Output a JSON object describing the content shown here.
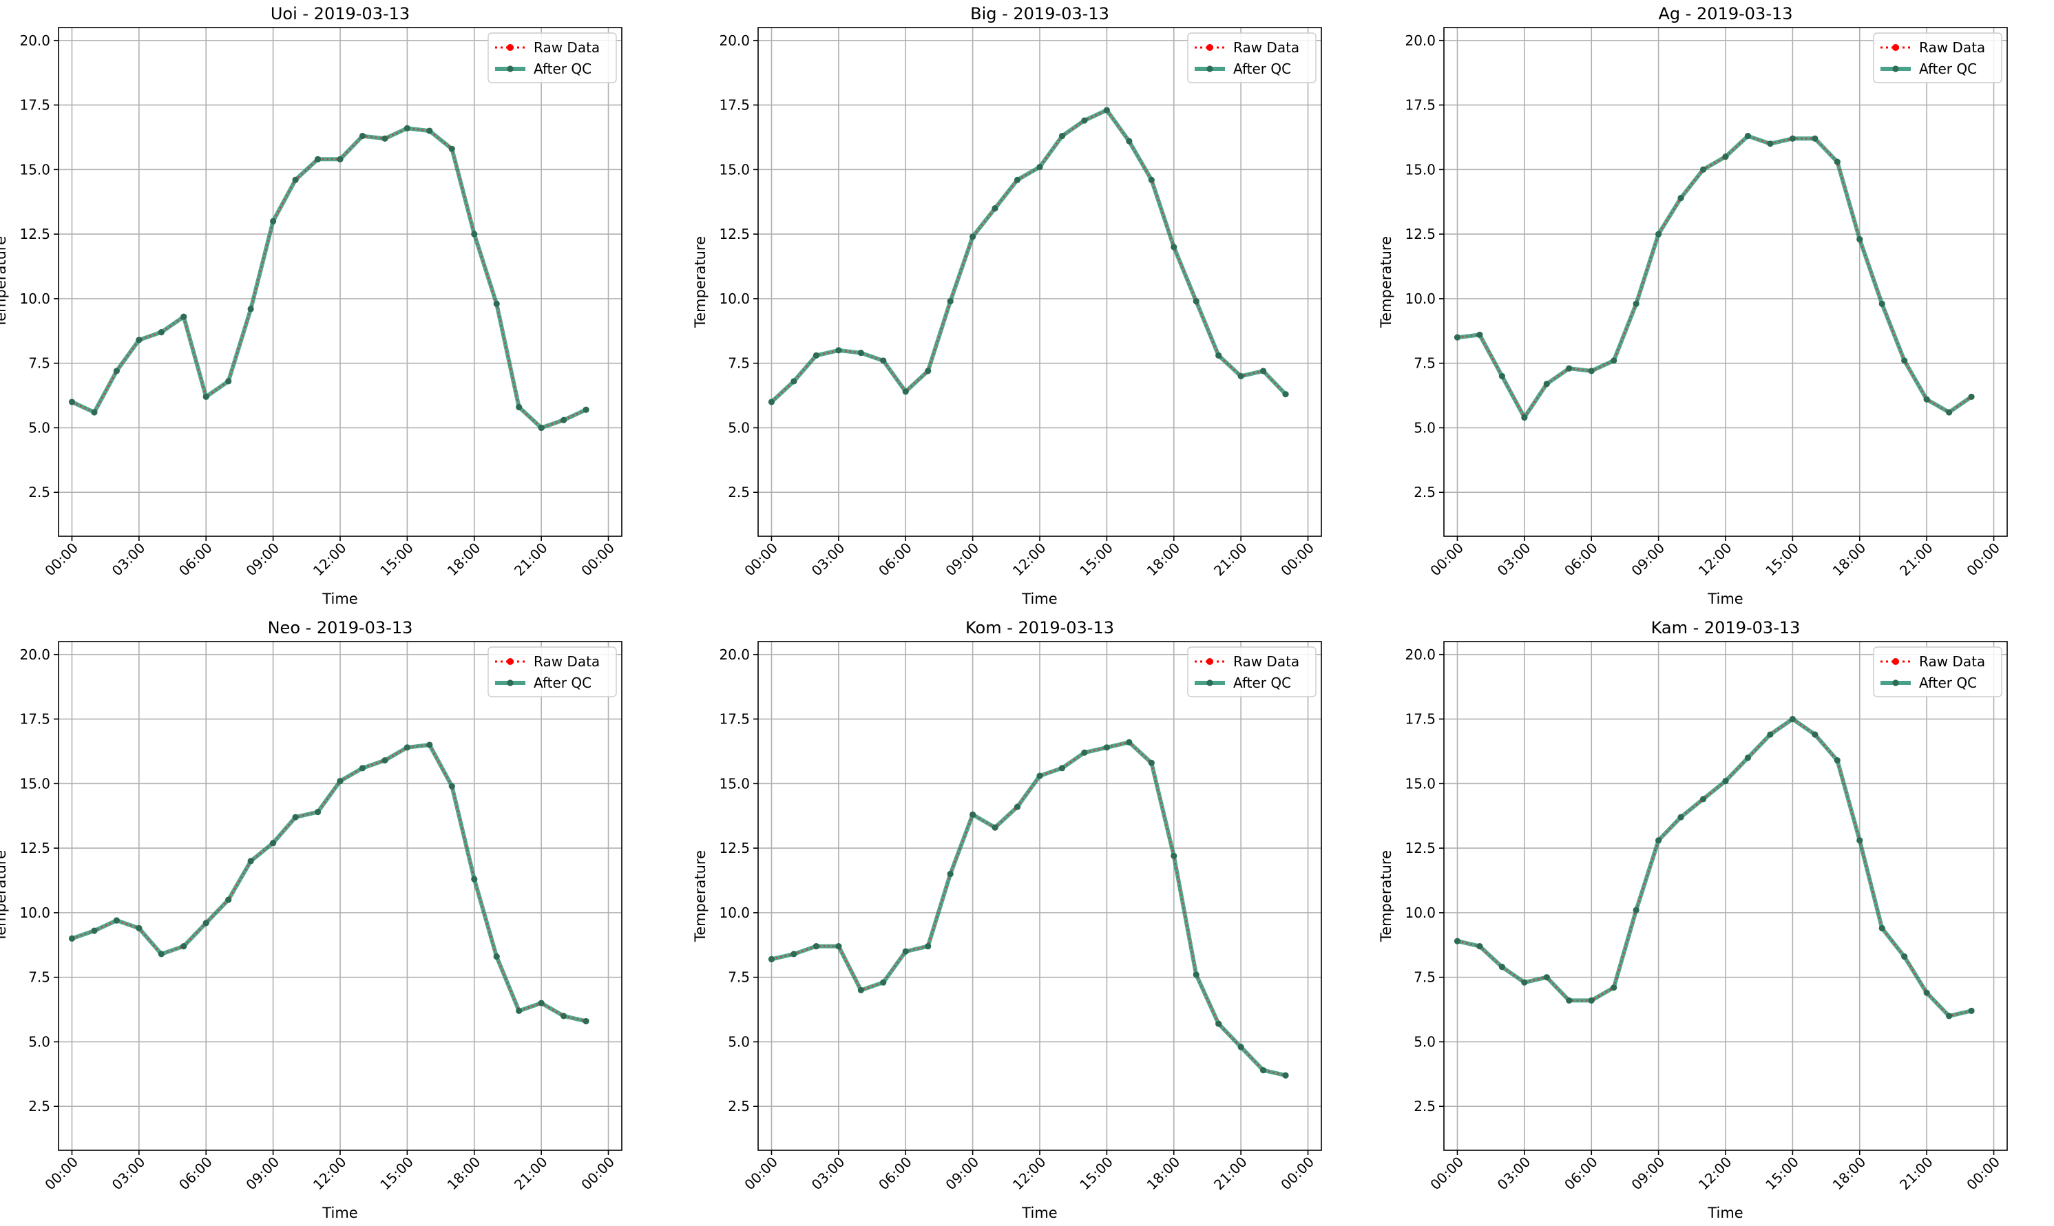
{
  "chart_data": [
    {
      "type": "line",
      "title": "Uoi - 2019-03-13",
      "xlabel": "Time",
      "ylabel": "Temperature",
      "xlim_hours": [
        -0.6,
        24.6
      ],
      "ylim": [
        0.8,
        20.5
      ],
      "xtick_labels": [
        "00:00",
        "03:00",
        "06:00",
        "09:00",
        "12:00",
        "15:00",
        "18:00",
        "21:00",
        "00:00"
      ],
      "ytick_labels": [
        "2.5",
        "5.0",
        "7.5",
        "10.0",
        "12.5",
        "15.0",
        "17.5",
        "20.0"
      ],
      "grid": true,
      "legend_position": "top-right",
      "x": [
        "00:00",
        "01:00",
        "02:00",
        "03:00",
        "04:00",
        "05:00",
        "06:00",
        "07:00",
        "08:00",
        "09:00",
        "10:00",
        "11:00",
        "12:00",
        "13:00",
        "14:00",
        "15:00",
        "16:00",
        "17:00",
        "18:00",
        "19:00",
        "20:00",
        "21:00",
        "22:00",
        "23:00"
      ],
      "series": [
        {
          "name": "Raw Data",
          "color": "#ff0000",
          "style": "dotted",
          "values": [
            6.0,
            5.6,
            7.2,
            8.4,
            8.7,
            9.3,
            6.2,
            6.8,
            9.6,
            13.0,
            14.6,
            15.4,
            15.4,
            16.3,
            16.2,
            16.6,
            16.5,
            15.8,
            12.5,
            9.8,
            5.8,
            5.0,
            5.3,
            5.7
          ]
        },
        {
          "name": "After QC",
          "color": "#1a8a6a",
          "style": "solid",
          "values": [
            6.0,
            5.6,
            7.2,
            8.4,
            8.7,
            9.3,
            6.2,
            6.8,
            9.6,
            13.0,
            14.6,
            15.4,
            15.4,
            16.3,
            16.2,
            16.6,
            16.5,
            15.8,
            12.5,
            9.8,
            5.8,
            5.0,
            5.3,
            5.7
          ]
        }
      ]
    },
    {
      "type": "line",
      "title": "Big - 2019-03-13",
      "xlabel": "Time",
      "ylabel": "Temperature",
      "xlim_hours": [
        -0.6,
        24.6
      ],
      "ylim": [
        0.8,
        20.5
      ],
      "xtick_labels": [
        "00:00",
        "03:00",
        "06:00",
        "09:00",
        "12:00",
        "15:00",
        "18:00",
        "21:00",
        "00:00"
      ],
      "ytick_labels": [
        "2.5",
        "5.0",
        "7.5",
        "10.0",
        "12.5",
        "15.0",
        "17.5",
        "20.0"
      ],
      "grid": true,
      "legend_position": "top-right",
      "x": [
        "00:00",
        "01:00",
        "02:00",
        "03:00",
        "04:00",
        "05:00",
        "06:00",
        "07:00",
        "08:00",
        "09:00",
        "10:00",
        "11:00",
        "12:00",
        "13:00",
        "14:00",
        "15:00",
        "16:00",
        "17:00",
        "18:00",
        "19:00",
        "20:00",
        "21:00",
        "22:00",
        "23:00"
      ],
      "series": [
        {
          "name": "Raw Data",
          "color": "#ff0000",
          "style": "dotted",
          "values": [
            6.0,
            6.8,
            7.8,
            8.0,
            7.9,
            7.6,
            6.4,
            7.2,
            9.9,
            12.4,
            13.5,
            14.6,
            15.1,
            16.3,
            16.9,
            17.3,
            16.1,
            14.6,
            12.0,
            9.9,
            7.8,
            7.0,
            7.2,
            6.3
          ]
        },
        {
          "name": "After QC",
          "color": "#1a8a6a",
          "style": "solid",
          "values": [
            6.0,
            6.8,
            7.8,
            8.0,
            7.9,
            7.6,
            6.4,
            7.2,
            9.9,
            12.4,
            13.5,
            14.6,
            15.1,
            16.3,
            16.9,
            17.3,
            16.1,
            14.6,
            12.0,
            9.9,
            7.8,
            7.0,
            7.2,
            6.3
          ]
        }
      ]
    },
    {
      "type": "line",
      "title": "Ag - 2019-03-13",
      "xlabel": "Time",
      "ylabel": "Temperature",
      "xlim_hours": [
        -0.6,
        24.6
      ],
      "ylim": [
        0.8,
        20.5
      ],
      "xtick_labels": [
        "00:00",
        "03:00",
        "06:00",
        "09:00",
        "12:00",
        "15:00",
        "18:00",
        "21:00",
        "00:00"
      ],
      "ytick_labels": [
        "2.5",
        "5.0",
        "7.5",
        "10.0",
        "12.5",
        "15.0",
        "17.5",
        "20.0"
      ],
      "grid": true,
      "legend_position": "top-right",
      "x": [
        "00:00",
        "01:00",
        "02:00",
        "03:00",
        "04:00",
        "05:00",
        "06:00",
        "07:00",
        "08:00",
        "09:00",
        "10:00",
        "11:00",
        "12:00",
        "13:00",
        "14:00",
        "15:00",
        "16:00",
        "17:00",
        "18:00",
        "19:00",
        "20:00",
        "21:00",
        "22:00",
        "23:00"
      ],
      "series": [
        {
          "name": "Raw Data",
          "color": "#ff0000",
          "style": "dotted",
          "values": [
            8.5,
            8.6,
            7.0,
            5.4,
            6.7,
            7.3,
            7.2,
            7.6,
            9.8,
            12.5,
            13.9,
            15.0,
            15.5,
            16.3,
            16.0,
            16.2,
            16.2,
            15.3,
            12.3,
            9.8,
            7.6,
            6.1,
            5.6,
            6.2
          ]
        },
        {
          "name": "After QC",
          "color": "#1a8a6a",
          "style": "solid",
          "values": [
            8.5,
            8.6,
            7.0,
            5.4,
            6.7,
            7.3,
            7.2,
            7.6,
            9.8,
            12.5,
            13.9,
            15.0,
            15.5,
            16.3,
            16.0,
            16.2,
            16.2,
            15.3,
            12.3,
            9.8,
            7.6,
            6.1,
            5.6,
            6.2
          ]
        }
      ]
    },
    {
      "type": "line",
      "title": "Neo - 2019-03-13",
      "xlabel": "Time",
      "ylabel": "Temperature",
      "xlim_hours": [
        -0.6,
        24.6
      ],
      "ylim": [
        0.8,
        20.5
      ],
      "xtick_labels": [
        "00:00",
        "03:00",
        "06:00",
        "09:00",
        "12:00",
        "15:00",
        "18:00",
        "21:00",
        "00:00"
      ],
      "ytick_labels": [
        "2.5",
        "5.0",
        "7.5",
        "10.0",
        "12.5",
        "15.0",
        "17.5",
        "20.0"
      ],
      "grid": true,
      "legend_position": "top-right",
      "x": [
        "00:00",
        "01:00",
        "02:00",
        "03:00",
        "04:00",
        "05:00",
        "06:00",
        "07:00",
        "08:00",
        "09:00",
        "10:00",
        "11:00",
        "12:00",
        "13:00",
        "14:00",
        "15:00",
        "16:00",
        "17:00",
        "18:00",
        "19:00",
        "20:00",
        "21:00",
        "22:00",
        "23:00"
      ],
      "series": [
        {
          "name": "Raw Data",
          "color": "#ff0000",
          "style": "dotted",
          "values": [
            9.0,
            9.3,
            9.7,
            9.4,
            8.4,
            8.7,
            9.6,
            10.5,
            12.0,
            12.7,
            13.7,
            13.9,
            15.1,
            15.6,
            15.9,
            16.4,
            16.5,
            14.9,
            11.3,
            8.3,
            6.2,
            6.5,
            6.0,
            5.8
          ]
        },
        {
          "name": "After QC",
          "color": "#1a8a6a",
          "style": "solid",
          "values": [
            9.0,
            9.3,
            9.7,
            9.4,
            8.4,
            8.7,
            9.6,
            10.5,
            12.0,
            12.7,
            13.7,
            13.9,
            15.1,
            15.6,
            15.9,
            16.4,
            16.5,
            14.9,
            11.3,
            8.3,
            6.2,
            6.5,
            6.0,
            5.8
          ]
        }
      ]
    },
    {
      "type": "line",
      "title": "Kom - 2019-03-13",
      "xlabel": "Time",
      "ylabel": "Temperature",
      "xlim_hours": [
        -0.6,
        24.6
      ],
      "ylim": [
        0.8,
        20.5
      ],
      "xtick_labels": [
        "00:00",
        "03:00",
        "06:00",
        "09:00",
        "12:00",
        "15:00",
        "18:00",
        "21:00",
        "00:00"
      ],
      "ytick_labels": [
        "2.5",
        "5.0",
        "7.5",
        "10.0",
        "12.5",
        "15.0",
        "17.5",
        "20.0"
      ],
      "grid": true,
      "legend_position": "top-right",
      "x": [
        "00:00",
        "01:00",
        "02:00",
        "03:00",
        "04:00",
        "05:00",
        "06:00",
        "07:00",
        "08:00",
        "09:00",
        "10:00",
        "11:00",
        "12:00",
        "13:00",
        "14:00",
        "15:00",
        "16:00",
        "17:00",
        "18:00",
        "19:00",
        "20:00",
        "21:00",
        "22:00",
        "23:00"
      ],
      "series": [
        {
          "name": "Raw Data",
          "color": "#ff0000",
          "style": "dotted",
          "values": [
            8.2,
            8.4,
            8.7,
            8.7,
            7.0,
            7.3,
            8.5,
            8.7,
            11.5,
            13.8,
            13.3,
            14.1,
            15.3,
            15.6,
            16.2,
            16.4,
            16.6,
            15.8,
            12.2,
            7.6,
            5.7,
            4.8,
            3.9,
            3.7
          ]
        },
        {
          "name": "After QC",
          "color": "#1a8a6a",
          "style": "solid",
          "values": [
            8.2,
            8.4,
            8.7,
            8.7,
            7.0,
            7.3,
            8.5,
            8.7,
            11.5,
            13.8,
            13.3,
            14.1,
            15.3,
            15.6,
            16.2,
            16.4,
            16.6,
            15.8,
            12.2,
            7.6,
            5.7,
            4.8,
            3.9,
            3.7
          ]
        }
      ]
    },
    {
      "type": "line",
      "title": "Kam - 2019-03-13",
      "xlabel": "Time",
      "ylabel": "Temperature",
      "xlim_hours": [
        -0.6,
        24.6
      ],
      "ylim": [
        0.8,
        20.5
      ],
      "xtick_labels": [
        "00:00",
        "03:00",
        "06:00",
        "09:00",
        "12:00",
        "15:00",
        "18:00",
        "21:00",
        "00:00"
      ],
      "ytick_labels": [
        "2.5",
        "5.0",
        "7.5",
        "10.0",
        "12.5",
        "15.0",
        "17.5",
        "20.0"
      ],
      "grid": true,
      "legend_position": "top-right",
      "x": [
        "00:00",
        "01:00",
        "02:00",
        "03:00",
        "04:00",
        "05:00",
        "06:00",
        "07:00",
        "08:00",
        "09:00",
        "10:00",
        "11:00",
        "12:00",
        "13:00",
        "14:00",
        "15:00",
        "16:00",
        "17:00",
        "18:00",
        "19:00",
        "20:00",
        "21:00",
        "22:00",
        "23:00"
      ],
      "series": [
        {
          "name": "Raw Data",
          "color": "#ff0000",
          "style": "dotted",
          "values": [
            8.9,
            8.7,
            7.9,
            7.3,
            7.5,
            6.6,
            6.6,
            7.1,
            10.1,
            12.8,
            13.7,
            14.4,
            15.1,
            16.0,
            16.9,
            17.5,
            16.9,
            15.9,
            12.8,
            9.4,
            8.3,
            6.9,
            6.0,
            6.2
          ]
        },
        {
          "name": "After QC",
          "color": "#1a8a6a",
          "style": "solid",
          "values": [
            8.9,
            8.7,
            7.9,
            7.3,
            7.5,
            6.6,
            6.6,
            7.1,
            10.1,
            12.8,
            13.7,
            14.4,
            15.1,
            16.0,
            16.9,
            17.5,
            16.9,
            15.9,
            12.8,
            9.4,
            8.3,
            6.9,
            6.0,
            6.2
          ]
        }
      ]
    }
  ]
}
